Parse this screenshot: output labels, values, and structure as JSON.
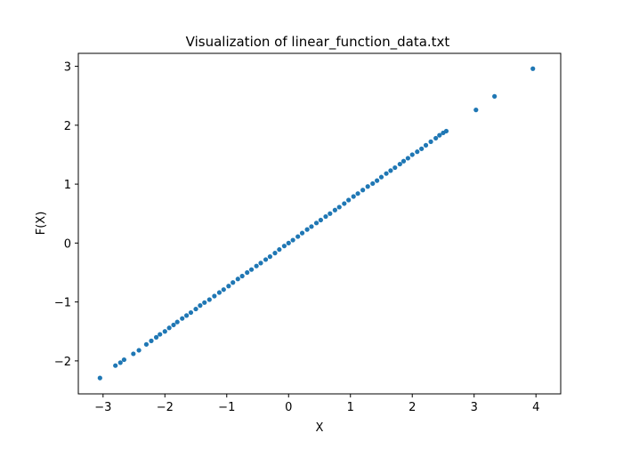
{
  "chart_data": {
    "type": "scatter",
    "title": "Visualization of linear_function_data.txt",
    "xlabel": "X",
    "ylabel": "F(X)",
    "xlim": [
      -3.4,
      4.4
    ],
    "ylim": [
      -2.56,
      3.22
    ],
    "xticks": [
      -3,
      -2,
      -1,
      0,
      1,
      2,
      3,
      4
    ],
    "xtick_labels": [
      "−3",
      "−2",
      "−1",
      "0",
      "1",
      "2",
      "3",
      "4"
    ],
    "yticks": [
      -2,
      -1,
      0,
      1,
      2,
      3
    ],
    "ytick_labels": [
      "−2",
      "−1",
      "0",
      "1",
      "2",
      "3"
    ],
    "grid": false,
    "color": "#1f77b4",
    "series": [
      {
        "x": [
          -3.05,
          -2.8,
          -2.72,
          -2.66,
          -2.51,
          -2.42,
          -2.3,
          -2.22,
          -2.14,
          -2.08,
          -2.0,
          -1.93,
          -1.86,
          -1.8,
          -1.72,
          -1.65,
          -1.58,
          -1.5,
          -1.43,
          -1.36,
          -1.28,
          -1.2,
          -1.12,
          -1.05,
          -0.97,
          -0.9,
          -0.82,
          -0.75,
          -0.67,
          -0.6,
          -0.52,
          -0.45,
          -0.37,
          -0.3,
          -0.22,
          -0.15,
          -0.07,
          0.0,
          0.07,
          0.15,
          0.22,
          0.3,
          0.37,
          0.45,
          0.52,
          0.6,
          0.67,
          0.75,
          0.82,
          0.9,
          0.97,
          1.05,
          1.12,
          1.2,
          1.28,
          1.36,
          1.43,
          1.5,
          1.58,
          1.65,
          1.72,
          1.8,
          1.86,
          1.93,
          2.0,
          2.08,
          2.15,
          2.22,
          2.3,
          2.38,
          2.44,
          2.5,
          2.55,
          3.03,
          3.33,
          3.95
        ],
        "y": [
          -2.29,
          -2.08,
          -2.03,
          -1.98,
          -1.88,
          -1.82,
          -1.72,
          -1.66,
          -1.6,
          -1.55,
          -1.5,
          -1.44,
          -1.39,
          -1.34,
          -1.28,
          -1.23,
          -1.18,
          -1.12,
          -1.06,
          -1.01,
          -0.96,
          -0.9,
          -0.84,
          -0.79,
          -0.73,
          -0.67,
          -0.61,
          -0.56,
          -0.5,
          -0.45,
          -0.39,
          -0.34,
          -0.28,
          -0.23,
          -0.17,
          -0.11,
          -0.05,
          0.0,
          0.05,
          0.11,
          0.17,
          0.23,
          0.28,
          0.34,
          0.39,
          0.45,
          0.5,
          0.56,
          0.61,
          0.67,
          0.73,
          0.79,
          0.84,
          0.9,
          0.96,
          1.01,
          1.06,
          1.12,
          1.18,
          1.23,
          1.28,
          1.34,
          1.39,
          1.44,
          1.5,
          1.55,
          1.6,
          1.66,
          1.72,
          1.78,
          1.83,
          1.87,
          1.9,
          2.26,
          2.49,
          2.96
        ]
      }
    ]
  }
}
